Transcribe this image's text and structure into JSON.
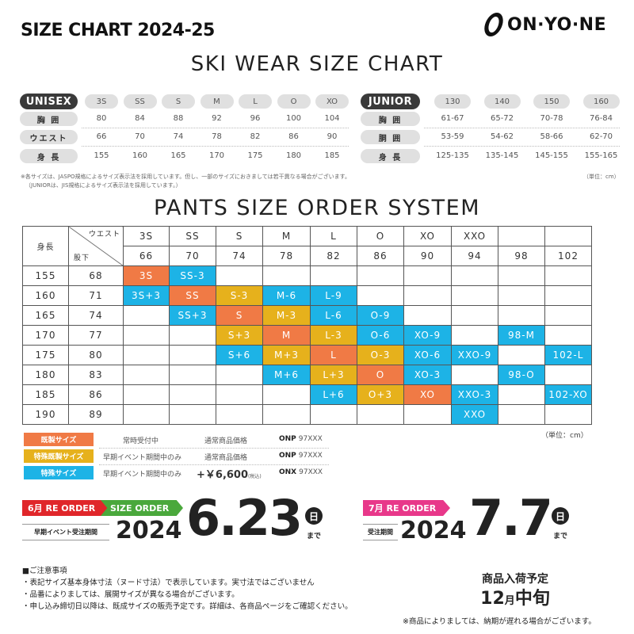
{
  "header": {
    "title": "SIZE CHART 2024-25",
    "brand": "ONYONE",
    "brand_text": "ON·YO·NE"
  },
  "ski_title": "SKI WEAR SIZE CHART",
  "unisex": {
    "label": "UNISEX",
    "sizes": [
      "3S",
      "SS",
      "S",
      "M",
      "L",
      "O",
      "XO"
    ],
    "rows": [
      {
        "label": "胸 囲",
        "values": [
          "80",
          "84",
          "88",
          "92",
          "96",
          "100",
          "104"
        ]
      },
      {
        "label": "ウエスト",
        "values": [
          "66",
          "70",
          "74",
          "78",
          "82",
          "86",
          "90"
        ]
      },
      {
        "label": "身 長",
        "values": [
          "155",
          "160",
          "165",
          "170",
          "175",
          "180",
          "185"
        ]
      }
    ]
  },
  "junior": {
    "label": "JUNIOR",
    "sizes": [
      "130",
      "140",
      "150",
      "160"
    ],
    "rows": [
      {
        "label": "胸 囲",
        "values": [
          "61-67",
          "65-72",
          "70-78",
          "76-84"
        ]
      },
      {
        "label": "胴 囲",
        "values": [
          "53-59",
          "54-62",
          "58-66",
          "62-70"
        ]
      },
      {
        "label": "身 長",
        "values": [
          "125-135",
          "135-145",
          "145-155",
          "155-165"
        ]
      }
    ]
  },
  "footnote1": "※各サイズは、JASPO規格によるサイズ表示法を採用しています。但し、一部のサイズにおきましては若干異なる場合がございます。",
  "footnote2": "（JUNIORは、JIS規格によるサイズ表示法を採用しています。）",
  "unit_top": "（単位：cm）",
  "pants_title": "PANTS SIZE ORDER SYSTEM",
  "pants": {
    "height_label": "身長",
    "waist_label": "ウエスト",
    "inseam_label": "股下",
    "sizes": [
      "3S",
      "SS",
      "S",
      "M",
      "L",
      "O",
      "XO",
      "XXO",
      "",
      ""
    ],
    "waists": [
      "66",
      "70",
      "74",
      "78",
      "82",
      "86",
      "90",
      "94",
      "98",
      "102"
    ],
    "rows": [
      {
        "height": "155",
        "inseam": "68",
        "cells": [
          [
            "3S",
            "regular"
          ],
          [
            "SS-3",
            "special"
          ],
          null,
          null,
          null,
          null,
          null,
          null,
          null,
          null
        ]
      },
      {
        "height": "160",
        "inseam": "71",
        "cells": [
          [
            "3S+3",
            "special"
          ],
          [
            "SS",
            "regular"
          ],
          [
            "S-3",
            "special-regular"
          ],
          [
            "M-6",
            "special"
          ],
          [
            "L-9",
            "special"
          ],
          null,
          null,
          null,
          null,
          null
        ]
      },
      {
        "height": "165",
        "inseam": "74",
        "cells": [
          null,
          [
            "SS+3",
            "special"
          ],
          [
            "S",
            "regular"
          ],
          [
            "M-3",
            "special-regular"
          ],
          [
            "L-6",
            "special"
          ],
          [
            "O-9",
            "special"
          ],
          null,
          null,
          null,
          null
        ]
      },
      {
        "height": "170",
        "inseam": "77",
        "cells": [
          null,
          null,
          [
            "S+3",
            "special-regular"
          ],
          [
            "M",
            "regular"
          ],
          [
            "L-3",
            "special-regular"
          ],
          [
            "O-6",
            "special"
          ],
          [
            "XO-9",
            "special"
          ],
          null,
          [
            "98-M",
            "special"
          ],
          null
        ]
      },
      {
        "height": "175",
        "inseam": "80",
        "cells": [
          null,
          null,
          [
            "S+6",
            "special"
          ],
          [
            "M+3",
            "special-regular"
          ],
          [
            "L",
            "regular"
          ],
          [
            "O-3",
            "special-regular"
          ],
          [
            "XO-6",
            "special"
          ],
          [
            "XXO-9",
            "special"
          ],
          null,
          [
            "102-L",
            "special"
          ]
        ]
      },
      {
        "height": "180",
        "inseam": "83",
        "cells": [
          null,
          null,
          null,
          [
            "M+6",
            "special"
          ],
          [
            "L+3",
            "special-regular"
          ],
          [
            "O",
            "regular"
          ],
          [
            "XO-3",
            "special"
          ],
          null,
          [
            "98-O",
            "special"
          ],
          null
        ]
      },
      {
        "height": "185",
        "inseam": "86",
        "cells": [
          null,
          null,
          null,
          null,
          [
            "L+6",
            "special"
          ],
          [
            "O+3",
            "special-regular"
          ],
          [
            "XO",
            "regular"
          ],
          [
            "XXO-3",
            "special"
          ],
          null,
          [
            "102-XO",
            "special"
          ]
        ]
      },
      {
        "height": "190",
        "inseam": "89",
        "cells": [
          null,
          null,
          null,
          null,
          null,
          null,
          null,
          [
            "XXO",
            "special"
          ],
          null,
          null
        ]
      }
    ]
  },
  "unit_pants": "（単位：cm）",
  "legend": [
    {
      "label": "既製サイズ",
      "color": "#f07a45",
      "availability": "常時受付中",
      "price": "通常商品価格",
      "code_bold": "ONP",
      "code": "97XXX"
    },
    {
      "label": "特殊既製サイズ",
      "color": "#e6b11c",
      "availability": "早期イベント期間中のみ",
      "price": "通常商品価格",
      "code_bold": "ONP",
      "code": "97XXX"
    },
    {
      "label": "特殊サイズ",
      "color": "#1db3e6",
      "availability": "早期イベント期間中のみ",
      "price": "+￥6,600",
      "price_note": "(税込)",
      "code_bold": "ONX",
      "code": "97XXX"
    }
  ],
  "order1": {
    "tag1": "6月 RE ORDER",
    "tag2": "SIZE ORDER",
    "caption": "早期イベント受注期間",
    "year": "2024",
    "date": "6.23",
    "day": "日",
    "until": "まで",
    "tag1_color": "#e0262a",
    "tag2_color": "#4aa83c"
  },
  "order2": {
    "tag1": "7月 RE ORDER",
    "caption": "受注期間",
    "year": "2024",
    "date": "7.7",
    "day": "日",
    "until": "まで",
    "tag1_color": "#e8388a"
  },
  "notes": {
    "title": "■ご注意事項",
    "items": [
      "・表記サイズ基本身体寸法（ヌード寸法）で表示しています。実寸法ではございません",
      "・品番によりましては、展開サイズが異なる場合がございます。",
      "・申し込み締切日以降は、既成サイズの販売予定です。詳細は、各商品ページをご確認ください。"
    ]
  },
  "arrival": {
    "title": "商品入荷予定",
    "month": "12",
    "month_unit": "月",
    "period": "中旬",
    "note": "※商品によりましては、納期が遅れる場合がございます。"
  }
}
